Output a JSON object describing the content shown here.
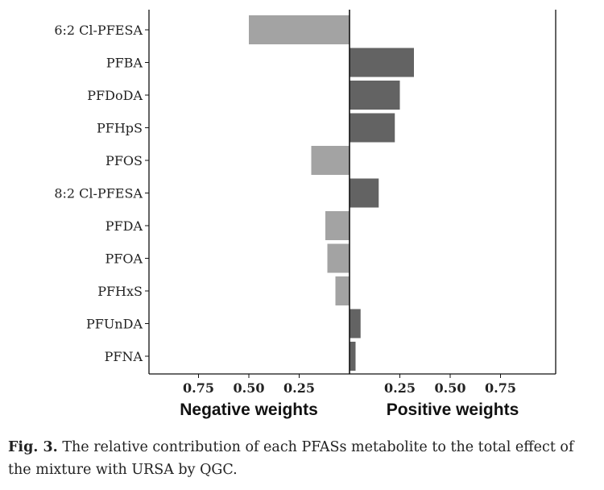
{
  "chart_data": {
    "type": "bar",
    "orientation": "horizontal-diverging",
    "categories": [
      "6:2 Cl-PFESA",
      "PFBA",
      "PFDoDA",
      "PFHpS",
      "PFOS",
      "8:2 Cl-PFESA",
      "PFDA",
      "PFOA",
      "PFHxS",
      "PFUnDA",
      "PFNA"
    ],
    "series": [
      {
        "name": "Negative weights",
        "values": [
          0.5,
          0,
          0,
          0,
          0.19,
          0,
          0.12,
          0.11,
          0.07,
          0,
          0
        ]
      },
      {
        "name": "Positive weights",
        "values": [
          0,
          0.32,
          0.25,
          0.225,
          0,
          0.145,
          0,
          0,
          0,
          0.055,
          0.03
        ]
      }
    ],
    "neg_ticks": [
      "0.75",
      "0.50",
      "0.25"
    ],
    "pos_ticks": [
      "0.25",
      "0.50",
      "0.75"
    ],
    "neg_xlabel": "Negative weights",
    "pos_xlabel": "Positive weights",
    "xlim": [
      0,
      1
    ],
    "colors": {
      "negative": "#a3a3a3",
      "positive": "#636363",
      "axis": "#111111"
    }
  },
  "caption": {
    "label": "Fig. 3.",
    "text": " The relative contribution of each PFASs metabolite to the total effect of the mixture with URSA by QGC."
  }
}
